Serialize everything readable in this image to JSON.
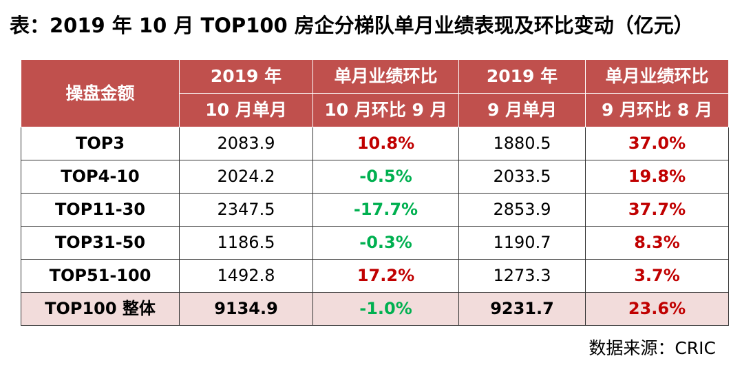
{
  "title": "表：2019 年 10 月 TOP100 房企分梯队单月业绩表现及环比变动（亿元）",
  "header": {
    "col0": "操盘金额",
    "col1_line1": "2019 年",
    "col1_line2": "10 月单月",
    "col2_line1": "单月业绩环比",
    "col2_line2": "10 月环比 9 月",
    "col3_line1": "2019 年",
    "col3_line2": "9 月单月",
    "col4_line1": "单月业绩环比",
    "col4_line2": "9 月环比 8 月"
  },
  "rows": [
    {
      "tier": "TOP3",
      "oct": "2083.9",
      "oct_mom": "10.8%",
      "sep": "1880.5",
      "sep_mom": "37.0%"
    },
    {
      "tier": "TOP4-10",
      "oct": "2024.2",
      "oct_mom": "-0.5%",
      "sep": "2033.5",
      "sep_mom": "19.8%"
    },
    {
      "tier": "TOP11-30",
      "oct": "2347.5",
      "oct_mom": "-17.7%",
      "sep": "2853.9",
      "sep_mom": "37.7%"
    },
    {
      "tier": "TOP31-50",
      "oct": "1186.5",
      "oct_mom": "-0.3%",
      "sep": "1190.7",
      "sep_mom": "8.3%"
    },
    {
      "tier": "TOP51-100",
      "oct": "1492.8",
      "oct_mom": "17.2%",
      "sep": "1273.3",
      "sep_mom": "3.7%"
    },
    {
      "tier": "TOP100 整体",
      "oct": "9134.9",
      "oct_mom": "-1.0%",
      "sep": "9231.7",
      "sep_mom": "23.6%"
    }
  ],
  "colors": {
    "header_bg": "#c0504d",
    "positive": "#c00000",
    "negative": "#00b050",
    "total_row_bg": "#f2dcdb"
  },
  "source": "数据来源：CRIC"
}
